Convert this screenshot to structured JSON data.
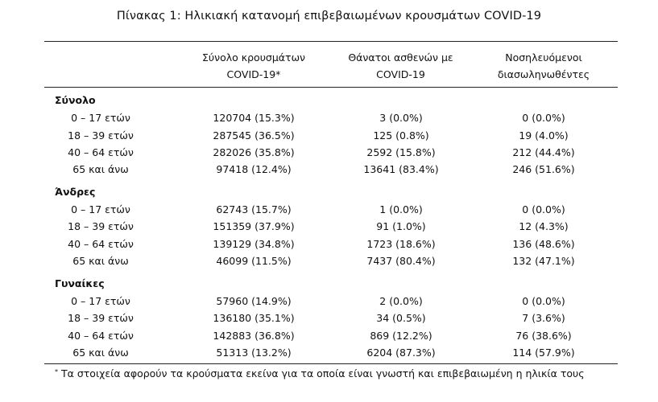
{
  "title": "Πίνακας 1: Ηλικιακή κατανομή επιβεβαιωμένων κρουσμάτων COVID-19",
  "headers": [
    {
      "line1": "Σύνολο κρουσμάτων",
      "line2": "COVID-19*"
    },
    {
      "line1": "Θάνατοι ασθενών με",
      "line2": "COVID-19"
    },
    {
      "line1": "Νοσηλευόμενοι",
      "line2": "διασωληνωθέντες"
    }
  ],
  "groups": [
    {
      "name": "Σύνολο",
      "rows": [
        {
          "label": "0 – 17 ετών",
          "cases": "120704 (15.3%)",
          "deaths": "3 (0.0%)",
          "intubated": "0 (0.0%)"
        },
        {
          "label": "18 – 39 ετών",
          "cases": "287545 (36.5%)",
          "deaths": "125 (0.8%)",
          "intubated": "19 (4.0%)"
        },
        {
          "label": "40 – 64 ετών",
          "cases": "282026 (35.8%)",
          "deaths": "2592 (15.8%)",
          "intubated": "212 (44.4%)"
        },
        {
          "label": "65 και άνω",
          "cases": "97418 (12.4%)",
          "deaths": "13641 (83.4%)",
          "intubated": "246 (51.6%)"
        }
      ]
    },
    {
      "name": "Άνδρες",
      "rows": [
        {
          "label": "0 – 17 ετών",
          "cases": "62743 (15.7%)",
          "deaths": "1 (0.0%)",
          "intubated": "0 (0.0%)"
        },
        {
          "label": "18 – 39 ετών",
          "cases": "151359 (37.9%)",
          "deaths": "91 (1.0%)",
          "intubated": "12 (4.3%)"
        },
        {
          "label": "40 – 64 ετών",
          "cases": "139129 (34.8%)",
          "deaths": "1723 (18.6%)",
          "intubated": "136 (48.6%)"
        },
        {
          "label": "65 και άνω",
          "cases": "46099 (11.5%)",
          "deaths": "7437 (80.4%)",
          "intubated": "132 (47.1%)"
        }
      ]
    },
    {
      "name": "Γυναίκες",
      "rows": [
        {
          "label": "0 – 17 ετών",
          "cases": "57960 (14.9%)",
          "deaths": "2 (0.0%)",
          "intubated": "0 (0.0%)"
        },
        {
          "label": "18 – 39 ετών",
          "cases": "136180 (35.1%)",
          "deaths": "34 (0.5%)",
          "intubated": "7 (3.6%)"
        },
        {
          "label": "40 – 64 ετών",
          "cases": "142883 (36.8%)",
          "deaths": "869 (12.2%)",
          "intubated": "76 (38.6%)"
        },
        {
          "label": "65 και άνω",
          "cases": "51313 (13.2%)",
          "deaths": "6204 (87.3%)",
          "intubated": "114 (57.9%)"
        }
      ]
    }
  ],
  "footnote": {
    "marker": "*",
    "text": "Τα στοιχεία αφορούν τα κρούσματα εκείνα για τα οποία είναι γνωστή και επιβεβαιωμένη η ηλικία τους"
  }
}
